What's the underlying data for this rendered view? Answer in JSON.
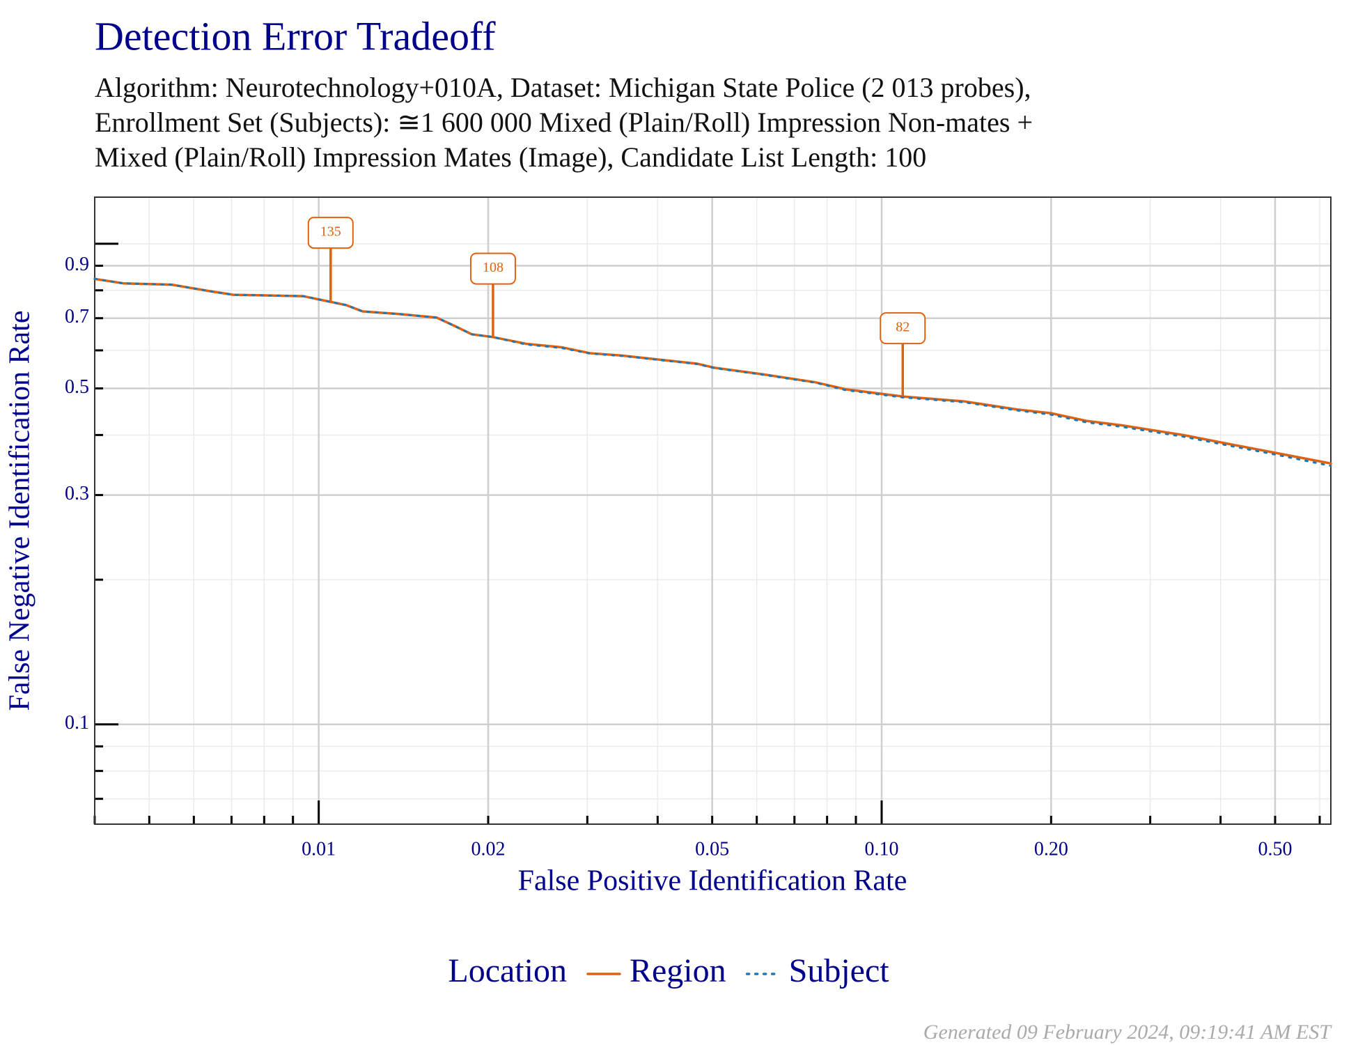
{
  "chart_data": {
    "type": "line",
    "title": "Detection Error Tradeoff",
    "subtitle": [
      "Algorithm: Neurotechnology+010A, Dataset: Michigan State Police (2 013 probes),",
      "Enrollment Set (Subjects): ≅1 600 000 Mixed (Plain/Roll) Impression Non-mates +",
      "Mixed (Plain/Roll) Impression Mates (Image), Candidate List Length: 100"
    ],
    "x_label": "False Positive Identification Rate",
    "y_label": "False Negative Identification Rate",
    "x_scale": "log",
    "y_scale": "log",
    "xlim": [
      0.004,
      0.628
    ],
    "ylim": [
      0.062,
      1.25
    ],
    "xticks": [
      0.01,
      0.02,
      0.05,
      {
        "value": 0.1,
        "label": "0.10"
      },
      {
        "value": 0.2,
        "label": "0.20"
      },
      {
        "value": 0.5,
        "label": "0.50"
      }
    ],
    "yticks": [
      0.1,
      0.3,
      0.5,
      0.7,
      0.9
    ],
    "xminorticks": [
      0.004,
      0.005,
      0.006,
      0.007,
      0.008,
      0.009,
      0.03,
      0.04,
      0.06,
      0.07,
      0.08,
      0.09,
      0.3,
      0.4,
      0.6
    ],
    "yminorticks": [
      1.0,
      0.8,
      0.6,
      0.4,
      0.2,
      0.09,
      0.08,
      0.07
    ],
    "grid": true,
    "x": [
      0.004,
      0.0045,
      0.00548,
      0.00644,
      0.00705,
      0.00938,
      0.0101,
      0.0112,
      0.01197,
      0.0139,
      0.0162,
      0.0175,
      0.0187,
      0.0203,
      0.0234,
      0.027,
      0.0303,
      0.0347,
      0.0414,
      0.047,
      0.0505,
      0.0615,
      0.0762,
      0.0863,
      0.109,
      0.14,
      0.174,
      0.2,
      0.231,
      0.267,
      0.343,
      0.41,
      0.508,
      0.628
    ],
    "series": [
      {
        "name": "Region",
        "color": "#e0620f",
        "dash": "solid",
        "values": [
          0.845,
          0.827,
          0.822,
          0.796,
          0.783,
          0.778,
          0.764,
          0.745,
          0.723,
          0.714,
          0.702,
          0.673,
          0.648,
          0.64,
          0.619,
          0.609,
          0.592,
          0.585,
          0.572,
          0.563,
          0.552,
          0.535,
          0.515,
          0.498,
          0.481,
          0.47,
          0.452,
          0.444,
          0.428,
          0.419,
          0.4,
          0.384,
          0.366,
          0.349
        ]
      },
      {
        "name": "Subject",
        "color": "#1f77b4",
        "dash": "dotted",
        "values": [
          0.845,
          0.827,
          0.822,
          0.796,
          0.783,
          0.778,
          0.764,
          0.745,
          0.723,
          0.714,
          0.702,
          0.673,
          0.648,
          0.64,
          0.617,
          0.607,
          0.591,
          0.584,
          0.571,
          0.562,
          0.551,
          0.534,
          0.514,
          0.496,
          0.479,
          0.468,
          0.45,
          0.441,
          0.425,
          0.416,
          0.397,
          0.381,
          0.363,
          0.345
        ]
      }
    ],
    "annotations": [
      {
        "x": 0.0105,
        "y": 0.76,
        "label": 135
      },
      {
        "x": 0.0204,
        "y": 0.64,
        "label": 108
      },
      {
        "x": 0.109,
        "y": 0.481,
        "label": 82
      }
    ],
    "annotation_color": "#e0620f",
    "legend_title": "Location",
    "legend_position": "bottom",
    "footer": "Generated 09 February 2024, 09:19:41 AM EST"
  }
}
